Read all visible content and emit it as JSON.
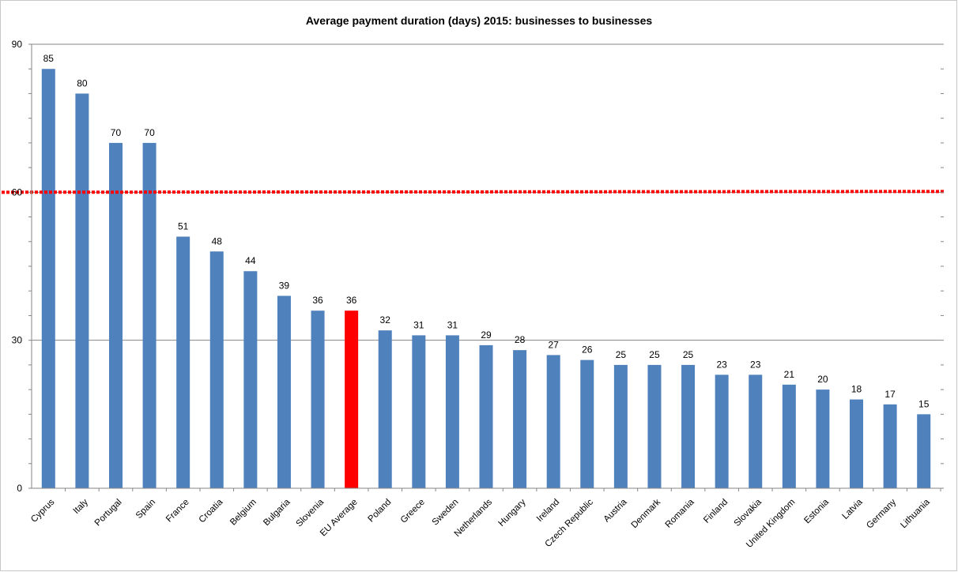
{
  "chart_data": {
    "type": "bar",
    "title": "Average payment duration (days) 2015: businesses to businesses",
    "xlabel": "",
    "ylabel": "",
    "ylim": [
      0,
      90
    ],
    "yticks": [
      0,
      30,
      60,
      90
    ],
    "grid": "horizontal",
    "legend": "none",
    "categories": [
      "Cyprus",
      "Italy",
      "Portugal",
      "Spain",
      "France",
      "Croatia",
      "Belgium",
      "Bulgaria",
      "Slovenia",
      "EU Average",
      "Poland",
      "Greece",
      "Sweden",
      "Netherlands",
      "Hungary",
      "Ireland",
      "Czech Republic",
      "Austria",
      "Denmark",
      "Romania",
      "Finland",
      "Slovakia",
      "United Kingdom",
      "Estonia",
      "Latvia",
      "Germany",
      "Lithuania"
    ],
    "values": [
      85,
      80,
      70,
      70,
      51,
      48,
      44,
      39,
      36,
      36,
      32,
      31,
      31,
      29,
      28,
      27,
      26,
      25,
      25,
      25,
      23,
      23,
      21,
      20,
      18,
      17,
      15
    ],
    "highlight_category": "EU Average",
    "reference_line": {
      "value": 60,
      "color": "#ff0000",
      "style": "dotted"
    },
    "colors": {
      "bar": "#4f81bd",
      "highlight": "#ff0000",
      "grid": "#868686"
    }
  }
}
